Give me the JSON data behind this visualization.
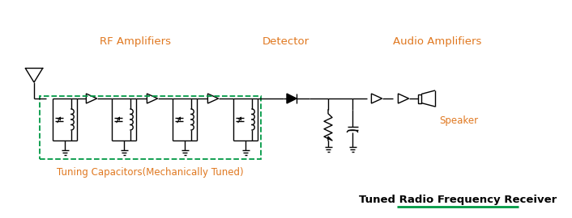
{
  "title": "Tuned Radio Frequency Receiver",
  "title_color": "#000000",
  "title_underline_color": "#009944",
  "label_rf": "RF Amplifiers",
  "label_detector": "Detector",
  "label_audio": "Audio Amplifiers",
  "label_speaker": "Speaker",
  "label_tuning": "Tuning Capacitors(Mechanically Tuned)",
  "orange_color": "#e07820",
  "black_color": "#000000",
  "green_color": "#009944",
  "bg_color": "#ffffff",
  "figsize": [
    7.06,
    2.7
  ],
  "dpi": 100
}
